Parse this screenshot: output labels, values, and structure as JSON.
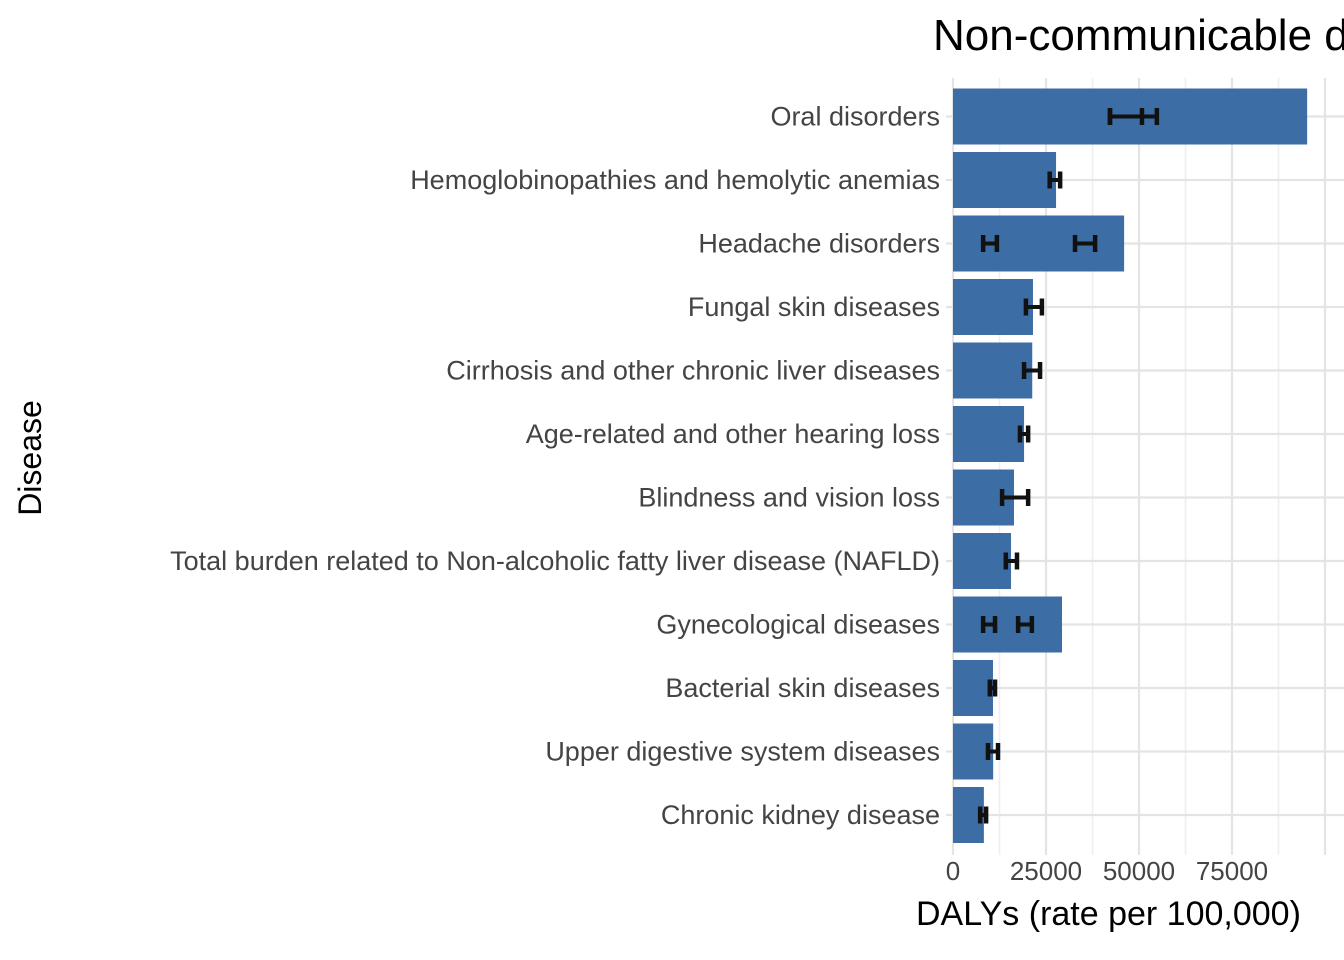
{
  "chart_data": {
    "type": "bar",
    "orientation": "horizontal",
    "title": "Non-communicable diseases",
    "xlabel": "DALYs (rate per 100,000)",
    "ylabel": "Disease",
    "xlim": [
      0,
      105000
    ],
    "grid": {
      "minor_step": 12500,
      "major_step": 25000,
      "max_line": 100000
    },
    "legend": "none",
    "x_ticks": [
      {
        "value": 0,
        "label": "0"
      },
      {
        "value": 25000,
        "label": "25000"
      },
      {
        "value": 50000,
        "label": "50000"
      },
      {
        "value": 75000,
        "label": "75000"
      }
    ],
    "rows": [
      {
        "label": "Oral disorders",
        "value": 95200,
        "error_bars": [
          [
            42200,
            54800
          ],
          [
            42200,
            50800
          ]
        ]
      },
      {
        "label": "Hemoglobinopathies and hemolytic anemias",
        "value": 27700,
        "error_bars": [
          [
            26000,
            28800
          ]
        ]
      },
      {
        "label": "Headache disorders",
        "value": 46000,
        "error_bars": [
          [
            8100,
            11800
          ],
          [
            32800,
            38200
          ]
        ]
      },
      {
        "label": "Fungal skin diseases",
        "value": 21500,
        "error_bars": [
          [
            19600,
            23900
          ]
        ]
      },
      {
        "label": "Cirrhosis and other chronic liver diseases",
        "value": 21300,
        "error_bars": [
          [
            19100,
            23400
          ]
        ]
      },
      {
        "label": "Age-related and other hearing loss",
        "value": 19100,
        "error_bars": [
          [
            18000,
            20200
          ]
        ]
      },
      {
        "label": "Blindness and vision loss",
        "value": 16400,
        "error_bars": [
          [
            13200,
            20200
          ]
        ]
      },
      {
        "label": "Total burden related to Non-alcoholic fatty liver disease (NAFLD)",
        "value": 15600,
        "error_bars": [
          [
            14200,
            17200
          ]
        ]
      },
      {
        "label": "Gynecological diseases",
        "value": 29300,
        "error_bars": [
          [
            8100,
            11300
          ],
          [
            17500,
            21200
          ]
        ]
      },
      {
        "label": "Bacterial skin diseases",
        "value": 10750,
        "error_bars": [
          [
            9900,
            11300
          ]
        ]
      },
      {
        "label": "Upper digestive system diseases",
        "value": 10800,
        "error_bars": [
          [
            9400,
            12100
          ]
        ]
      },
      {
        "label": "Chronic kidney disease",
        "value": 8300,
        "error_bars": [
          [
            7300,
            8900
          ]
        ]
      }
    ],
    "colors": {
      "bar": "#3C6DA5",
      "error_bar": "#111111",
      "grid_major": "#E4E4E4",
      "grid_minor": "#EFEFEF",
      "axis_text": "#444444",
      "title_text": "#000000",
      "background": "#FFFFFF"
    }
  }
}
